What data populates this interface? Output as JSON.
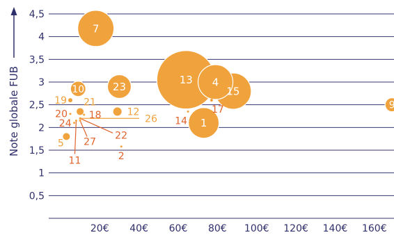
{
  "chart_data": {
    "type": "scatter",
    "ylabel": "Note globale FUB",
    "xlabel": "",
    "xlim": [
      -6,
      170
    ],
    "ylim": [
      0,
      4.5
    ],
    "x_ticks": [
      "20€",
      "40€",
      "60€",
      "80€",
      "100€",
      "120€",
      "140€",
      "160€"
    ],
    "x_tick_values": [
      20,
      40,
      60,
      80,
      100,
      120,
      140,
      160
    ],
    "y_ticks": [
      "0,5",
      "1",
      "1,5",
      "2",
      "2,5",
      "3",
      "3,5",
      "4",
      "4,5"
    ],
    "y_tick_values": [
      0.5,
      1,
      1.5,
      2,
      2.5,
      3,
      3.5,
      4,
      4.5
    ],
    "grid": true,
    "colors": {
      "bubble": "#f0a23c",
      "label_orange": "#e0632b",
      "label_amber": "#f0a23c",
      "axis": "#2f2f6b",
      "grid": "#35356e"
    },
    "points": [
      {
        "id": "1",
        "x": 73,
        "y": 2.1,
        "size": 22
      },
      {
        "id": "2",
        "x": 31,
        "y": 1.58,
        "size": 1.5
      },
      {
        "id": "4",
        "x": 79,
        "y": 3.0,
        "size": 25
      },
      {
        "id": "5",
        "x": 3,
        "y": 1.8,
        "size": 5
      },
      {
        "id": "7",
        "x": 18,
        "y": 4.18,
        "size": 26
      },
      {
        "id": "9",
        "x": 169,
        "y": 2.5,
        "size": 10
      },
      {
        "id": "10",
        "x": 9,
        "y": 2.85,
        "size": 11
      },
      {
        "id": "11",
        "x": 8,
        "y": 2.15,
        "size": 1.5
      },
      {
        "id": "12",
        "x": 29,
        "y": 2.35,
        "size": 6
      },
      {
        "id": "13",
        "x": 64,
        "y": 3.05,
        "size": 42
      },
      {
        "id": "14",
        "x": 65,
        "y": 2.35,
        "size": 1.5
      },
      {
        "id": "15",
        "x": 88,
        "y": 2.8,
        "size": 26
      },
      {
        "id": "17",
        "x": 77,
        "y": 2.6,
        "size": 2
      },
      {
        "id": "18",
        "x": 12,
        "y": 2.28,
        "size": 1.5
      },
      {
        "id": "19",
        "x": 5,
        "y": 2.6,
        "size": 3
      },
      {
        "id": "20",
        "x": 5,
        "y": 2.3,
        "size": 1.5
      },
      {
        "id": "21",
        "x": 10,
        "y": 2.35,
        "size": 5
      },
      {
        "id": "22",
        "x": 10,
        "y": 2.2,
        "size": 1.5
      },
      {
        "id": "23",
        "x": 30,
        "y": 2.9,
        "size": 17
      },
      {
        "id": "24",
        "x": 7,
        "y": 2.1,
        "size": 1.5
      },
      {
        "id": "26",
        "x": 10,
        "y": 2.2,
        "size": 1.5
      },
      {
        "id": "27",
        "x": 10,
        "y": 2.15,
        "size": 1.5
      }
    ]
  }
}
